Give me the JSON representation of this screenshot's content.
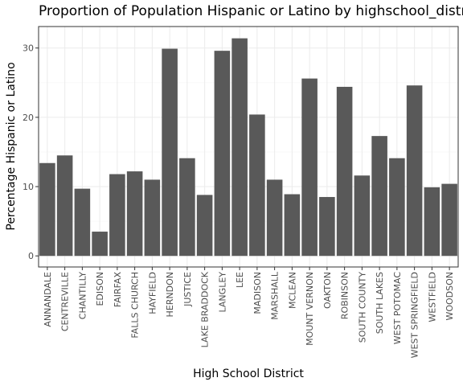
{
  "chart_data": {
    "type": "bar",
    "title": "Proportion of Population Hispanic or Latino by highschool_district",
    "xlabel": "High School District",
    "ylabel": "Percentage Hispanic or Latino",
    "ylim": [
      -1.6,
      33.1
    ],
    "yticks": [
      0,
      10,
      20,
      30
    ],
    "grid": true,
    "categories": [
      "ANNANDALE",
      "CENTREVILLE",
      "CHANTILLY",
      "EDISON",
      "FAIRFAX",
      "FALLS CHURCH",
      "HAYFIELD",
      "HERNDON",
      "JUSTICE",
      "LAKE BRADDOCK",
      "LANGLEY",
      "LEE",
      "MADISON",
      "MARSHALL",
      "MCLEAN",
      "MOUNT VERNON",
      "OAKTON",
      "ROBINSON",
      "SOUTH COUNTY",
      "SOUTH LAKES",
      "WEST POTOMAC",
      "WEST SPRINGFIELD",
      "WESTFIELD",
      "WOODSON"
    ],
    "values": [
      13.4,
      14.5,
      9.7,
      3.5,
      11.8,
      12.2,
      11.0,
      29.9,
      14.1,
      8.8,
      29.6,
      31.4,
      20.4,
      11.0,
      8.9,
      25.6,
      8.5,
      24.4,
      11.6,
      17.3,
      14.1,
      24.6,
      9.9,
      10.4
    ]
  },
  "colors": {
    "bar": "#595959",
    "panel_border": "#333333",
    "grid": "#ebebeb"
  }
}
